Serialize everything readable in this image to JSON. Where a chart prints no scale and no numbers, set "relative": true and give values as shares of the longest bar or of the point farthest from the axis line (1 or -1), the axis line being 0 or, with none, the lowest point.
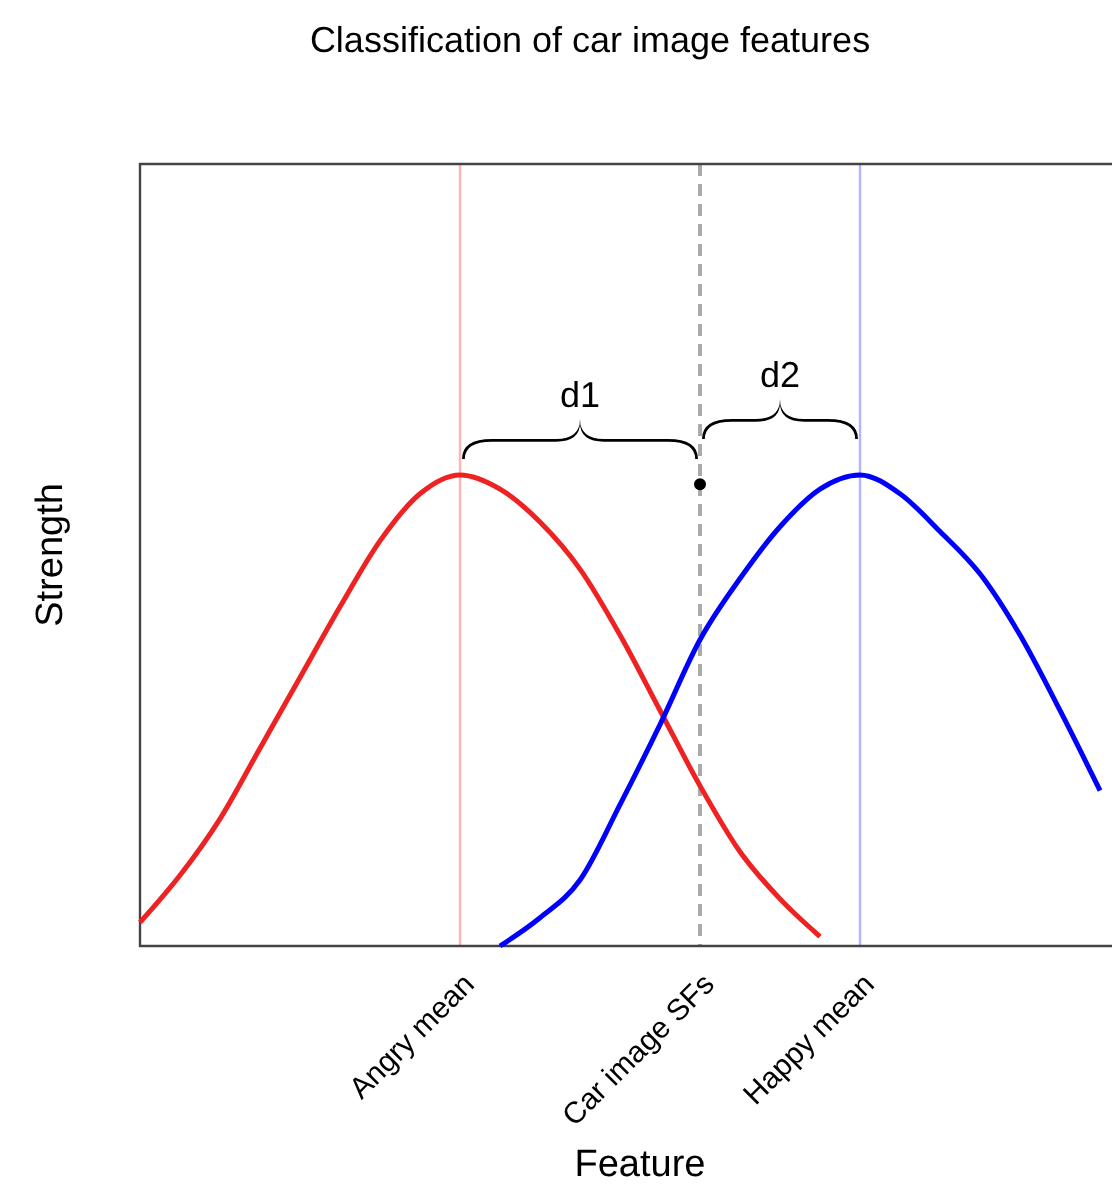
{
  "chart_data": {
    "type": "line",
    "title": "Classification of car image features",
    "xlabel": "Feature",
    "ylabel": "Strength",
    "relative": true,
    "tick_labels": "x",
    "categories": [
      null,
      null,
      null,
      null,
      null,
      null,
      null,
      null,
      "Angry mean",
      null,
      null,
      null,
      null,
      null,
      "Car image SFs",
      null,
      null,
      null,
      "Happy mean",
      null,
      null,
      null,
      null,
      null,
      null
    ],
    "series": [
      {
        "color": "#ee2222",
        "marker": "none",
        "line_style": "solid",
        "values": [
          0.05,
          0.15,
          0.27,
          0.42,
          0.57,
          0.72,
          0.86,
          0.96,
          1,
          0.97,
          0.9,
          0.8,
          0.66,
          0.5,
          0.34,
          0.2,
          0.1,
          0.02,
          null,
          null,
          null,
          null,
          null,
          null,
          null
        ]
      },
      {
        "color": "#0000ff",
        "marker": "none",
        "line_style": "solid",
        "values": [
          null,
          null,
          null,
          null,
          null,
          null,
          null,
          null,
          null,
          0,
          0.06,
          0.14,
          0.3,
          0.47,
          0.65,
          0.78,
          0.89,
          0.97,
          1,
          0.96,
          0.88,
          0.79,
          0.66,
          0.5,
          0.33
        ]
      },
      {
        "type": "scatter",
        "color": "#000000",
        "marker": "circle",
        "values": [
          null,
          null,
          null,
          null,
          null,
          null,
          null,
          null,
          null,
          null,
          null,
          null,
          null,
          null,
          0.98,
          null,
          null,
          null,
          null,
          null,
          null,
          null,
          null,
          null,
          null
        ]
      }
    ],
    "ref_lines": [
      {
        "axis": "x",
        "value": "Angry mean",
        "color": "#ffb3b3",
        "line_style": "solid"
      },
      {
        "axis": "x",
        "value": "Car image SFs",
        "color": "#aaaaaa",
        "line_style": "dashed"
      },
      {
        "axis": "x",
        "value": "Happy mean",
        "color": "#b3b3ff",
        "line_style": "solid"
      }
    ],
    "annotations": [
      "d1",
      "d2"
    ]
  }
}
